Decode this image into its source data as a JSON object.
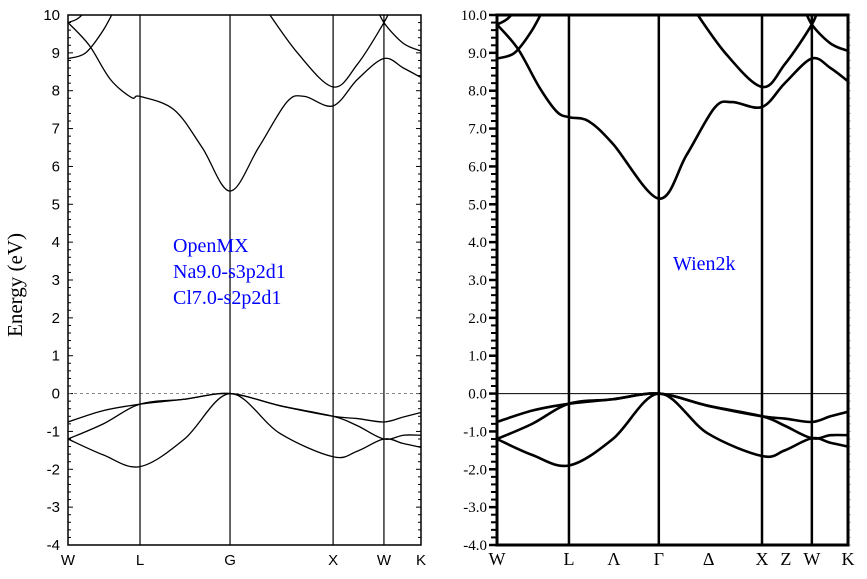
{
  "chart_data": [
    {
      "type": "line",
      "title": "",
      "ylabel": "Energy (eV)",
      "xlabel": "",
      "ylim": [
        -4,
        10
      ],
      "yticks": [
        "-4",
        "-3",
        "-2",
        "-1",
        "0",
        "1",
        "2",
        "3",
        "4",
        "5",
        "6",
        "7",
        "8",
        "9",
        "10"
      ],
      "kpoints": [
        {
          "label": "W",
          "k": 0
        },
        {
          "label": "L",
          "k": 0.204
        },
        {
          "label": "G",
          "k": 0.459
        },
        {
          "label": "X",
          "k": 0.751
        },
        {
          "label": "W",
          "k": 0.895
        },
        {
          "label": "K",
          "k": 1
        }
      ],
      "extra_labels": [],
      "fermi_level": 0,
      "annotation": [
        "OpenMX",
        "Na9.0-s3p2d1",
        "Cl7.0-s2p2d1"
      ],
      "annotation_color": "#0000ff",
      "series": [
        {
          "name": "band-1",
          "points": [
            [
              0,
              -1.2
            ],
            [
              0.1,
              -1.62
            ],
            [
              0.204,
              -1.93
            ],
            [
              0.33,
              -1.2
            ],
            [
              0.459,
              0
            ],
            [
              0.6,
              -1.05
            ],
            [
              0.751,
              -1.67
            ],
            [
              0.82,
              -1.52
            ],
            [
              0.895,
              -1.2
            ],
            [
              0.95,
              -1.32
            ],
            [
              1,
              -1.42
            ]
          ]
        },
        {
          "name": "band-2",
          "points": [
            [
              0,
              -1.2
            ],
            [
              0.1,
              -0.8
            ],
            [
              0.204,
              -0.28
            ],
            [
              0.33,
              -0.15
            ],
            [
              0.459,
              0
            ],
            [
              0.6,
              -0.32
            ],
            [
              0.751,
              -0.6
            ],
            [
              0.82,
              -0.85
            ],
            [
              0.895,
              -1.2
            ],
            [
              0.95,
              -1.1
            ],
            [
              1,
              -1.1
            ]
          ]
        },
        {
          "name": "band-3",
          "points": [
            [
              0,
              -0.75
            ],
            [
              0.1,
              -0.45
            ],
            [
              0.204,
              -0.28
            ],
            [
              0.33,
              -0.15
            ],
            [
              0.459,
              0
            ],
            [
              0.6,
              -0.32
            ],
            [
              0.751,
              -0.6
            ],
            [
              0.82,
              -0.66
            ],
            [
              0.895,
              -0.75
            ],
            [
              0.95,
              -0.62
            ],
            [
              1,
              -0.5
            ]
          ]
        },
        {
          "name": "band-4",
          "points": [
            [
              0,
              9.8
            ],
            [
              0.06,
              9.2
            ],
            [
              0.12,
              8.3
            ],
            [
              0.18,
              7.82
            ],
            [
              0.204,
              7.85
            ],
            [
              0.3,
              7.5
            ],
            [
              0.38,
              6.5
            ],
            [
              0.459,
              5.35
            ],
            [
              0.54,
              6.5
            ],
            [
              0.62,
              7.7
            ],
            [
              0.67,
              7.85
            ],
            [
              0.751,
              7.6
            ],
            [
              0.82,
              8.3
            ],
            [
              0.895,
              8.85
            ],
            [
              0.95,
              8.6
            ],
            [
              1,
              8.35
            ]
          ]
        },
        {
          "name": "band-5",
          "points": [
            [
              0,
              8.85
            ],
            [
              0.05,
              9.0
            ],
            [
              0.1,
              9.6
            ],
            [
              0.14,
              10.3
            ]
          ]
        },
        {
          "name": "band-6",
          "points": [
            [
              0,
              9.8
            ],
            [
              0.03,
              9.92
            ],
            [
              0.07,
              10.3
            ]
          ]
        },
        {
          "name": "band-7",
          "points": [
            [
              0.55,
              10.3
            ],
            [
              0.65,
              9.0
            ],
            [
              0.751,
              8.1
            ],
            [
              0.82,
              8.7
            ],
            [
              0.895,
              9.8
            ],
            [
              0.92,
              10.3
            ]
          ]
        },
        {
          "name": "band-8",
          "points": [
            [
              0.87,
              10.3
            ],
            [
              0.895,
              9.8
            ],
            [
              0.95,
              9.25
            ],
            [
              1,
              9.05
            ]
          ]
        }
      ]
    },
    {
      "type": "line",
      "title": "",
      "ylabel": "",
      "xlabel": "",
      "ylim": [
        -4,
        10
      ],
      "yticks": [
        "-4.0",
        "-3.0",
        "-2.0",
        "-1.0",
        "0.0",
        "1.0",
        "2.0",
        "3.0",
        "4.0",
        "5.0",
        "6.0",
        "7.0",
        "8.0",
        "9.0",
        "10.0"
      ],
      "kpoints": [
        {
          "label": "W",
          "k": 0
        },
        {
          "label": "L",
          "k": 0.205
        },
        {
          "label": "Γ",
          "k": 0.461
        },
        {
          "label": "X",
          "k": 0.755
        },
        {
          "label": "W",
          "k": 0.897
        },
        {
          "label": "K",
          "k": 1
        }
      ],
      "extra_labels": [
        {
          "label": "Λ",
          "k": 0.333
        },
        {
          "label": "Δ",
          "k": 0.603
        },
        {
          "label": "Z",
          "k": 0.823
        }
      ],
      "fermi_level": 0,
      "annotation": [
        "Wien2k"
      ],
      "annotation_color": "#0000ff",
      "series": [
        {
          "name": "band-1",
          "points": [
            [
              0,
              -1.2
            ],
            [
              0.1,
              -1.62
            ],
            [
              0.205,
              -1.9
            ],
            [
              0.33,
              -1.2
            ],
            [
              0.461,
              0
            ],
            [
              0.6,
              -1.05
            ],
            [
              0.755,
              -1.65
            ],
            [
              0.82,
              -1.5
            ],
            [
              0.897,
              -1.18
            ],
            [
              0.95,
              -1.3
            ],
            [
              1,
              -1.4
            ]
          ]
        },
        {
          "name": "band-2",
          "points": [
            [
              0,
              -1.2
            ],
            [
              0.1,
              -0.8
            ],
            [
              0.205,
              -0.27
            ],
            [
              0.33,
              -0.15
            ],
            [
              0.461,
              0
            ],
            [
              0.6,
              -0.32
            ],
            [
              0.755,
              -0.6
            ],
            [
              0.82,
              -0.85
            ],
            [
              0.897,
              -1.18
            ],
            [
              0.95,
              -1.1
            ],
            [
              1,
              -1.1
            ]
          ]
        },
        {
          "name": "band-3",
          "points": [
            [
              0,
              -0.75
            ],
            [
              0.1,
              -0.45
            ],
            [
              0.205,
              -0.27
            ],
            [
              0.33,
              -0.15
            ],
            [
              0.461,
              0
            ],
            [
              0.6,
              -0.32
            ],
            [
              0.755,
              -0.6
            ],
            [
              0.82,
              -0.66
            ],
            [
              0.897,
              -0.75
            ],
            [
              0.95,
              -0.6
            ],
            [
              1,
              -0.48
            ]
          ]
        },
        {
          "name": "band-4",
          "points": [
            [
              0,
              9.75
            ],
            [
              0.06,
              9.1
            ],
            [
              0.12,
              8.1
            ],
            [
              0.17,
              7.45
            ],
            [
              0.205,
              7.3
            ],
            [
              0.26,
              7.2
            ],
            [
              0.33,
              6.6
            ],
            [
              0.461,
              5.15
            ],
            [
              0.54,
              6.3
            ],
            [
              0.62,
              7.55
            ],
            [
              0.67,
              7.7
            ],
            [
              0.755,
              7.57
            ],
            [
              0.82,
              8.2
            ],
            [
              0.897,
              8.85
            ],
            [
              0.95,
              8.6
            ],
            [
              1,
              8.25
            ]
          ]
        },
        {
          "name": "band-5",
          "points": [
            [
              0,
              8.85
            ],
            [
              0.05,
              9.0
            ],
            [
              0.1,
              9.6
            ],
            [
              0.14,
              10.3
            ]
          ]
        },
        {
          "name": "band-6",
          "points": [
            [
              0,
              9.75
            ],
            [
              0.03,
              9.9
            ],
            [
              0.07,
              10.3
            ]
          ]
        },
        {
          "name": "band-7",
          "points": [
            [
              0.55,
              10.3
            ],
            [
              0.65,
              9.0
            ],
            [
              0.755,
              8.1
            ],
            [
              0.82,
              8.7
            ],
            [
              0.897,
              9.75
            ],
            [
              0.92,
              10.3
            ]
          ]
        },
        {
          "name": "band-8",
          "points": [
            [
              0.87,
              10.3
            ],
            [
              0.897,
              9.75
            ],
            [
              0.95,
              9.25
            ],
            [
              1,
              9.05
            ]
          ]
        }
      ]
    }
  ]
}
